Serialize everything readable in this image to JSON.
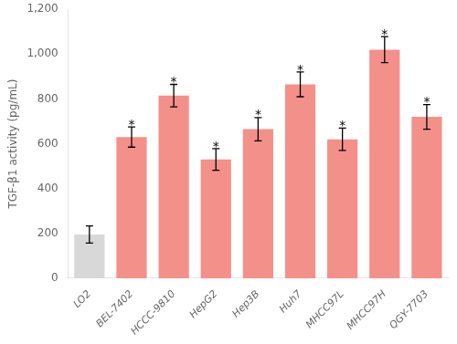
{
  "chart_data": {
    "type": "bar",
    "categories": [
      "LO2",
      "BEL-7402",
      "HCCC-9810",
      "HepG2",
      "Hep3B",
      "Huh7",
      "MHCC97L",
      "MHCC97H",
      "QGY-7703"
    ],
    "values": [
      195,
      630,
      815,
      530,
      665,
      865,
      620,
      1020,
      720
    ],
    "errors": [
      38,
      45,
      50,
      48,
      52,
      55,
      50,
      58,
      55
    ],
    "colors": [
      "#d8d8d8",
      "#f4908a",
      "#f4908a",
      "#f4908a",
      "#f4908a",
      "#f4908a",
      "#f4908a",
      "#f4908a",
      "#f4908a"
    ],
    "ylabel": "TGF-β1 activity (pg/mL)",
    "ylim": [
      0,
      1200
    ],
    "yticks": [
      0,
      200,
      400,
      600,
      800,
      {
        "value": 1000,
        "label": "1,000"
      },
      {
        "value": 1200,
        "label": "1,200"
      }
    ],
    "annotations": [
      {
        "category": "BEL-7402",
        "text": "*"
      },
      {
        "category": "HCCC-9810",
        "text": "*"
      },
      {
        "category": "HepG2",
        "text": "*"
      },
      {
        "category": "Hep3B",
        "text": "*"
      },
      {
        "category": "Huh7",
        "text": "*"
      },
      {
        "category": "MHCC97L",
        "text": "*"
      },
      {
        "category": "MHCC97H",
        "text": "*"
      },
      {
        "category": "QGY-7703",
        "text": "*"
      }
    ],
    "grid": false
  }
}
